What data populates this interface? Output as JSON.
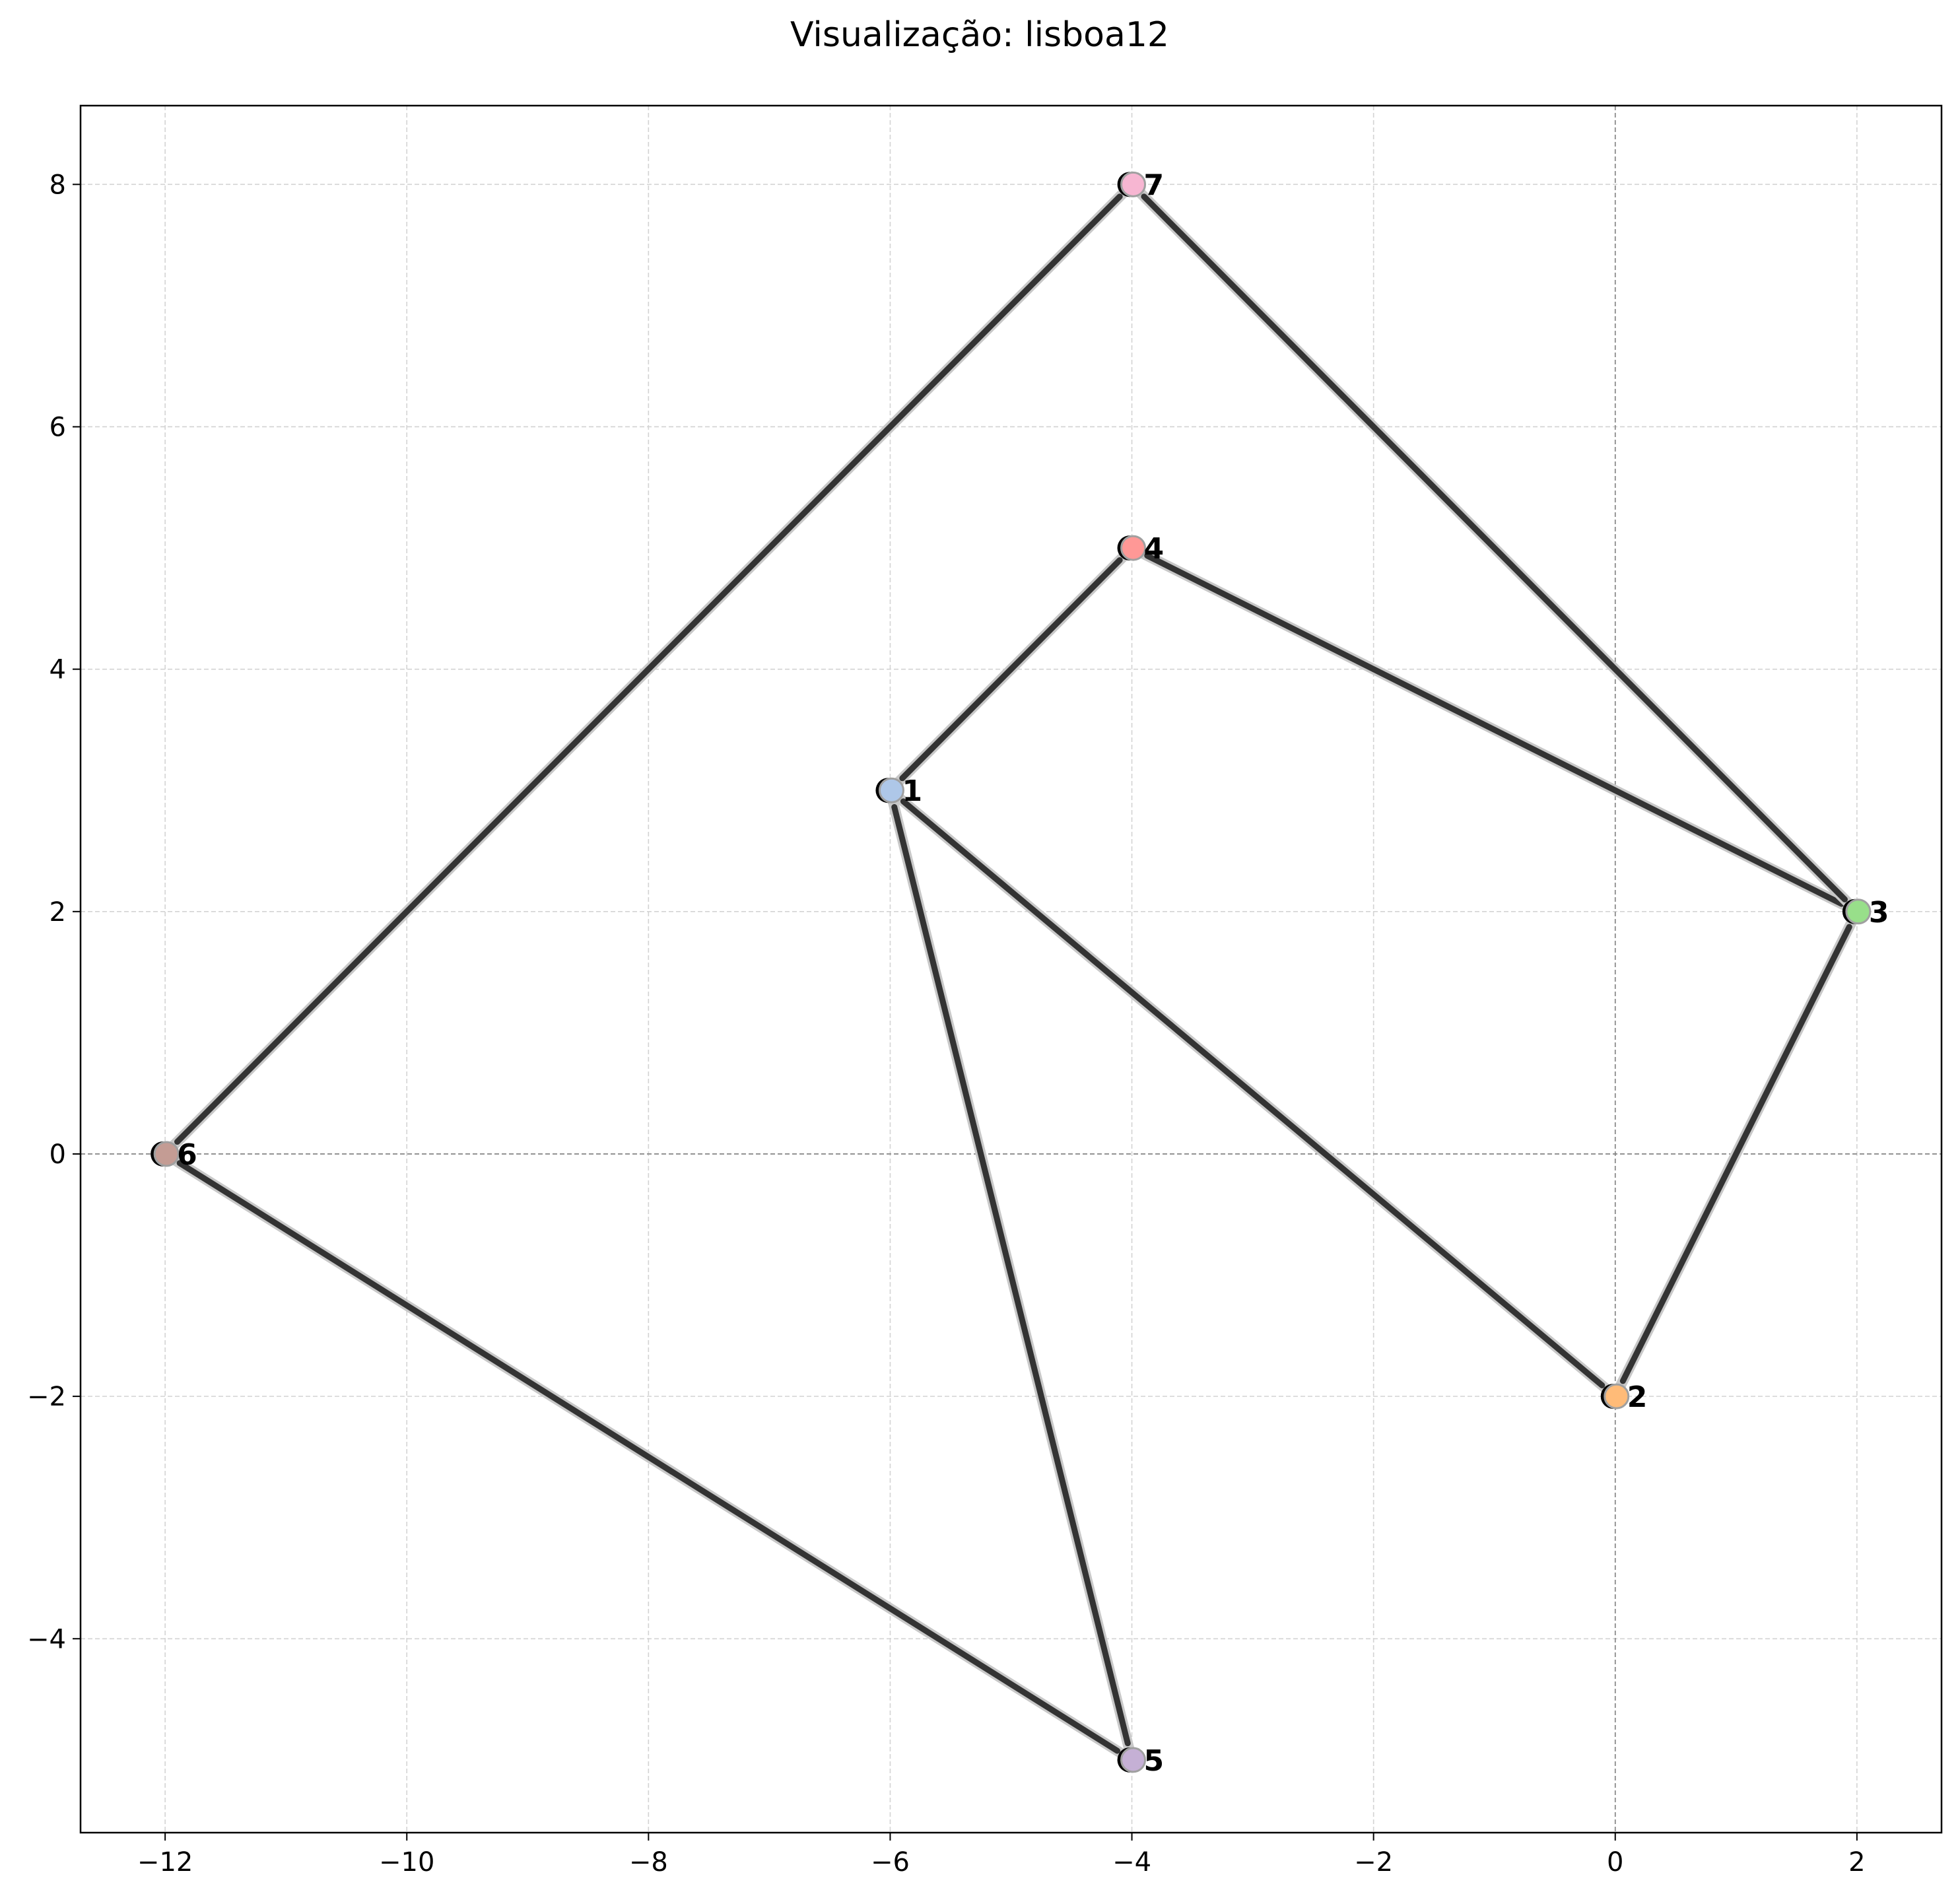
{
  "chart_data": {
    "type": "scatter",
    "title": "Visualização: lisboa12",
    "xlabel": "",
    "ylabel": "",
    "xlim": [
      -12.7,
      2.7
    ],
    "ylim": [
      -5.6,
      8.65
    ],
    "xticks": [
      -12,
      -10,
      -8,
      -6,
      -4,
      -2,
      0,
      2
    ],
    "yticks": [
      -4,
      -2,
      0,
      2,
      4,
      6,
      8
    ],
    "xtick_labels": [
      "−12",
      "−10",
      "−8",
      "−6",
      "−4",
      "−2",
      "0",
      "2"
    ],
    "ytick_labels": [
      "−4",
      "−2",
      "0",
      "2",
      "4",
      "6",
      "8"
    ],
    "grid": true,
    "reference_lines": {
      "x": 0,
      "y": 0
    },
    "points": [
      {
        "label": "1",
        "x": -6,
        "y": 3,
        "color": "#aec7e8"
      },
      {
        "label": "2",
        "x": 0,
        "y": -2,
        "color": "#ffbb78"
      },
      {
        "label": "3",
        "x": 2,
        "y": 2,
        "color": "#98df8a"
      },
      {
        "label": "4",
        "x": -4,
        "y": 5,
        "color": "#ff9896"
      },
      {
        "label": "5",
        "x": -4,
        "y": -5,
        "color": "#c5b0d5"
      },
      {
        "label": "6",
        "x": -12,
        "y": 0,
        "color": "#c49c94"
      },
      {
        "label": "7",
        "x": -4,
        "y": 8,
        "color": "#f7b6d2"
      }
    ],
    "edges": [
      [
        "1",
        "4"
      ],
      [
        "4",
        "3"
      ],
      [
        "3",
        "2"
      ],
      [
        "2",
        "1"
      ],
      [
        "1",
        "5"
      ],
      [
        "5",
        "6"
      ],
      [
        "6",
        "7"
      ],
      [
        "7",
        "3"
      ]
    ],
    "line_color": "#333333"
  }
}
